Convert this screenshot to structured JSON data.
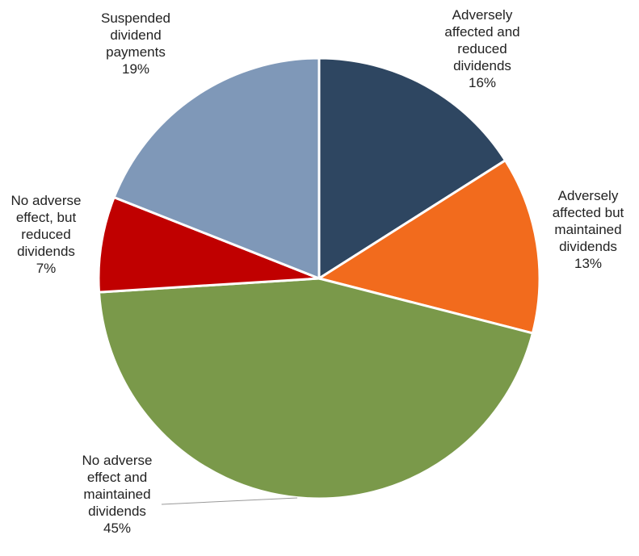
{
  "chart_data": {
    "type": "pie",
    "categories": [
      "Adversely affected and reduced dividends",
      "Adversely affected but maintained dividends",
      "No adverse effect and maintained dividends",
      "No adverse effect, but reduced dividends",
      "Suspended dividend payments"
    ],
    "values": [
      16,
      13,
      45,
      7,
      19
    ],
    "value_labels": [
      "16%",
      "13%",
      "45%",
      "7%",
      "19%"
    ],
    "colors": [
      "#2e4661",
      "#f26b1d",
      "#7a994a",
      "#c00000",
      "#7f98b8"
    ]
  }
}
